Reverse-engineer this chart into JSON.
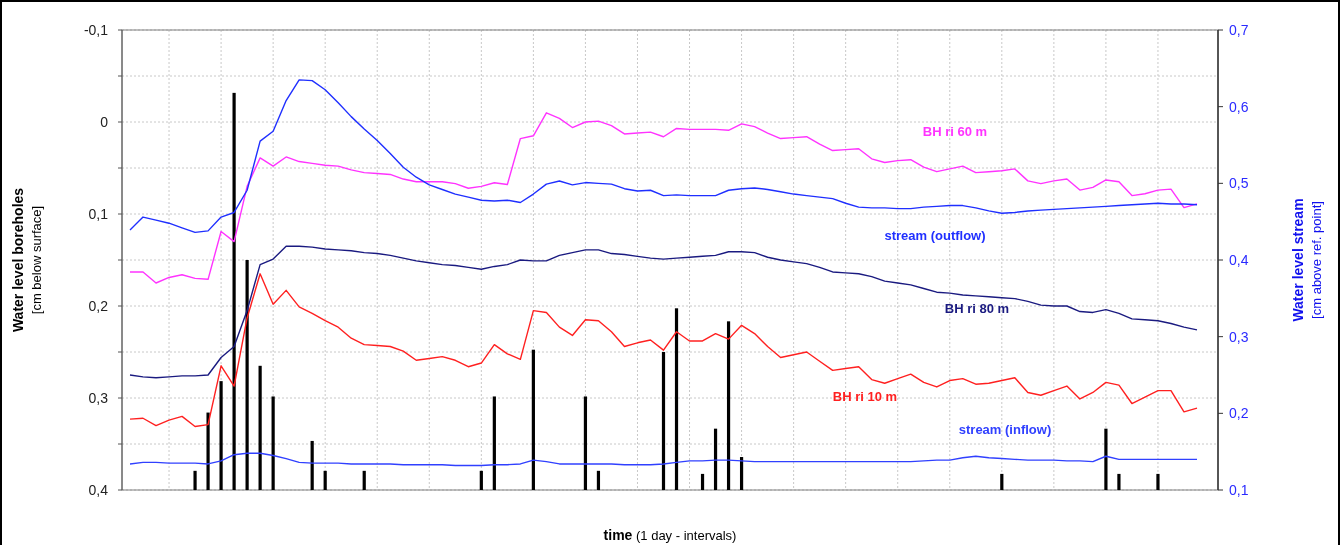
{
  "chart_data": {
    "type": "line",
    "xlabel": "time (1 day - intervals)",
    "ylabel": "Water level boreholes\n[cm below surface]",
    "y2label": "Water level stream\n[cm above ref. point]",
    "categories": [
      null,
      null,
      null,
      null,
      null,
      null,
      null,
      null,
      null,
      null,
      null,
      null,
      null,
      null,
      null,
      null,
      null,
      null,
      null,
      null,
      null,
      null,
      null,
      null,
      null,
      null,
      null,
      null,
      null,
      null,
      null,
      null,
      null,
      null,
      null,
      null,
      null,
      null,
      null,
      null,
      null,
      null,
      null,
      null,
      null,
      null,
      null,
      null,
      null,
      null,
      null,
      null,
      null,
      null,
      null,
      null,
      null,
      null,
      null,
      null,
      null,
      null,
      null,
      null,
      null,
      null,
      null,
      null,
      null,
      null,
      null,
      null,
      null,
      null,
      null,
      null,
      null,
      null,
      null,
      null,
      null,
      null,
      null
    ],
    "ylim": [
      0.4,
      -0.1
    ],
    "yticks": [
      {
        "value": -0.1,
        "label": "-0,1"
      },
      {
        "value": -0.05,
        "label": null
      },
      {
        "value": 0,
        "label": "0"
      },
      {
        "value": 0.05,
        "label": null
      },
      {
        "value": 0.1,
        "label": "0,1"
      },
      {
        "value": 0.15,
        "label": null
      },
      {
        "value": 0.2,
        "label": "0,2"
      },
      {
        "value": 0.25,
        "label": null
      },
      {
        "value": 0.3,
        "label": "0,3"
      },
      {
        "value": 0.35,
        "label": null
      },
      {
        "value": 0.4,
        "label": "0,4"
      }
    ],
    "y2lim": [
      0.1,
      0.7
    ],
    "y2ticks": [
      {
        "value": 0.1,
        "label": "0,1"
      },
      {
        "value": 0.2,
        "label": "0,2"
      },
      {
        "value": 0.3,
        "label": "0,3"
      },
      {
        "value": 0.4,
        "label": "0,4"
      },
      {
        "value": 0.5,
        "label": "0,5"
      },
      {
        "value": 0.6,
        "label": "0,6"
      },
      {
        "value": 0.7,
        "label": "0,7"
      }
    ],
    "grid": true,
    "series": [
      {
        "type": "bar",
        "axis": "y2",
        "color": "#000000",
        "values": [
          null,
          null,
          null,
          null,
          null,
          0.125,
          0.201,
          0.242,
          0.618,
          0.4,
          0.262,
          0.222,
          null,
          null,
          0.164,
          0.125,
          null,
          null,
          0.125,
          null,
          null,
          null,
          null,
          null,
          null,
          null,
          null,
          0.125,
          0.222,
          null,
          null,
          0.283,
          null,
          null,
          null,
          0.222,
          0.125,
          null,
          null,
          null,
          null,
          0.28,
          0.337,
          null,
          0.121,
          0.18,
          0.32,
          0.143,
          null,
          null,
          null,
          null,
          null,
          null,
          null,
          null,
          null,
          null,
          null,
          null,
          null,
          null,
          null,
          null,
          null,
          null,
          null,
          0.121,
          null,
          null,
          null,
          null,
          null,
          null,
          null,
          0.18,
          0.121,
          null,
          null,
          0.121,
          null,
          null,
          null
        ]
      },
      {
        "name": "BH ri 60 m",
        "color": "#ff33ff",
        "values": [
          0.163,
          0.163,
          0.175,
          0.169,
          0.166,
          0.17,
          0.171,
          0.119,
          0.13,
          0.07,
          0.039,
          0.048,
          0.038,
          0.043,
          0.045,
          0.047,
          0.048,
          0.052,
          0.055,
          0.056,
          0.057,
          0.062,
          0.065,
          0.065,
          0.065,
          0.067,
          0.072,
          0.07,
          0.066,
          0.068,
          0.018,
          0.015,
          -0.01,
          -0.004,
          0.006,
          0.0,
          -0.001,
          0.004,
          0.013,
          0.012,
          0.011,
          0.016,
          0.007,
          0.008,
          0.008,
          0.008,
          0.009,
          0.002,
          0.005,
          0.012,
          0.018,
          0.017,
          0.016,
          0.024,
          0.031,
          0.03,
          0.029,
          0.04,
          0.044,
          0.042,
          0.041,
          0.049,
          0.054,
          0.051,
          0.048,
          0.055,
          0.054,
          0.053,
          0.051,
          0.064,
          0.067,
          0.064,
          0.062,
          0.074,
          0.071,
          0.063,
          0.065,
          0.08,
          0.078,
          0.074,
          0.073,
          0.093,
          0.089
        ]
      },
      {
        "name": "stream (outflow)",
        "axis": "y2",
        "color": "#1f2fff",
        "values": [
          0.439,
          0.456,
          0.452,
          0.448,
          0.442,
          0.436,
          0.438,
          0.456,
          0.462,
          0.491,
          0.555,
          0.568,
          0.608,
          0.635,
          0.634,
          0.622,
          0.605,
          0.587,
          0.571,
          0.556,
          0.539,
          0.521,
          0.508,
          0.498,
          0.492,
          0.486,
          0.482,
          0.478,
          0.477,
          0.478,
          0.475,
          0.486,
          0.499,
          0.503,
          0.498,
          0.501,
          0.5,
          0.499,
          0.493,
          0.49,
          0.491,
          0.484,
          0.485,
          0.484,
          0.484,
          0.484,
          0.491,
          0.493,
          0.494,
          0.492,
          0.489,
          0.486,
          0.484,
          0.482,
          0.48,
          0.474,
          0.469,
          0.468,
          0.468,
          0.467,
          0.467,
          0.469,
          0.47,
          0.471,
          0.471,
          0.468,
          0.464,
          0.461,
          0.462,
          0.464,
          0.465,
          0.466,
          0.467,
          0.468,
          0.469,
          0.47,
          0.471,
          0.472,
          0.473,
          0.474,
          0.473,
          0.473,
          0.472
        ]
      },
      {
        "name": "BH ri 80 m",
        "color": "#1a1a80",
        "values": [
          0.275,
          0.277,
          0.278,
          0.277,
          0.276,
          0.276,
          0.275,
          0.256,
          0.244,
          0.205,
          0.155,
          0.149,
          0.135,
          0.135,
          0.136,
          0.138,
          0.139,
          0.14,
          0.142,
          0.143,
          0.145,
          0.148,
          0.151,
          0.153,
          0.155,
          0.156,
          0.158,
          0.16,
          0.157,
          0.155,
          0.15,
          0.151,
          0.151,
          0.145,
          0.142,
          0.139,
          0.139,
          0.143,
          0.144,
          0.146,
          0.148,
          0.149,
          0.148,
          0.147,
          0.146,
          0.145,
          0.141,
          0.141,
          0.142,
          0.147,
          0.15,
          0.152,
          0.154,
          0.158,
          0.163,
          0.164,
          0.165,
          0.168,
          0.173,
          0.175,
          0.177,
          0.181,
          0.185,
          0.186,
          0.188,
          0.189,
          0.19,
          0.191,
          0.192,
          0.195,
          0.199,
          0.2,
          0.2,
          0.206,
          0.207,
          0.204,
          0.208,
          0.214,
          0.215,
          0.216,
          0.219,
          0.223,
          0.226
        ]
      },
      {
        "name": "BH ri 10 m",
        "color": "#ff2020",
        "values": [
          0.323,
          0.322,
          0.33,
          0.324,
          0.32,
          0.331,
          0.329,
          0.265,
          0.287,
          0.213,
          0.165,
          0.198,
          0.183,
          0.201,
          0.208,
          0.216,
          0.223,
          0.235,
          0.242,
          0.243,
          0.244,
          0.249,
          0.259,
          0.257,
          0.255,
          0.259,
          0.266,
          0.262,
          0.242,
          0.252,
          0.258,
          0.205,
          0.207,
          0.223,
          0.232,
          0.215,
          0.216,
          0.228,
          0.244,
          0.24,
          0.237,
          0.248,
          0.228,
          0.238,
          0.238,
          0.23,
          0.236,
          0.221,
          0.23,
          0.244,
          0.256,
          0.253,
          0.25,
          0.26,
          0.27,
          0.268,
          0.266,
          0.28,
          0.284,
          0.279,
          0.274,
          0.283,
          0.288,
          0.281,
          0.279,
          0.285,
          0.284,
          0.281,
          0.278,
          0.294,
          0.297,
          0.292,
          0.287,
          0.301,
          0.294,
          0.283,
          0.286,
          0.306,
          0.299,
          0.292,
          0.292,
          0.315,
          0.311
        ]
      },
      {
        "name": "stream (inflow)",
        "axis": "y2",
        "color": "#3040ff",
        "values": [
          0.134,
          0.136,
          0.136,
          0.135,
          0.135,
          0.135,
          0.134,
          0.138,
          0.146,
          0.148,
          0.148,
          0.145,
          0.141,
          0.136,
          0.135,
          0.135,
          0.135,
          0.134,
          0.134,
          0.134,
          0.134,
          0.133,
          0.133,
          0.133,
          0.133,
          0.132,
          0.132,
          0.132,
          0.133,
          0.133,
          0.134,
          0.139,
          0.137,
          0.134,
          0.134,
          0.134,
          0.134,
          0.134,
          0.133,
          0.133,
          0.133,
          0.134,
          0.136,
          0.138,
          0.138,
          0.139,
          0.139,
          0.138,
          0.137,
          0.137,
          0.137,
          0.137,
          0.137,
          0.137,
          0.137,
          0.137,
          0.137,
          0.137,
          0.137,
          0.137,
          0.137,
          0.138,
          0.139,
          0.139,
          0.142,
          0.144,
          0.142,
          0.141,
          0.14,
          0.139,
          0.139,
          0.139,
          0.138,
          0.138,
          0.137,
          0.144,
          0.14,
          0.14,
          0.14,
          0.14,
          0.14,
          0.14,
          0.14
        ]
      }
    ]
  }
}
